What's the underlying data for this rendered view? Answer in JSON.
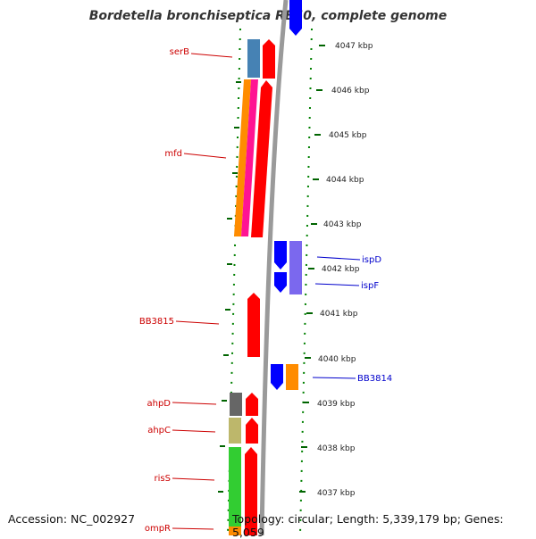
{
  "title": "Bordetella bronchiseptica RB50, complete genome",
  "footer": {
    "accession": "Accession: NC_002927",
    "topology": "Topology: circular; Length: 5,339,179 bp; Genes: 5,059"
  },
  "scale_labels": [
    "4047 kbp",
    "4046 kbp",
    "4045 kbp",
    "4044 kbp",
    "4043 kbp",
    "4042 kbp",
    "4041 kbp",
    "4040 kbp",
    "4039 kbp",
    "4038 kbp",
    "4037 kbp"
  ],
  "gene_labels": {
    "serB": "serB",
    "mfd": "mfd",
    "bb3815": "BB3815",
    "ahpD": "ahpD",
    "ahpC": "ahpC",
    "risS": "risS",
    "ompR": "ompR",
    "ispD": "ispD",
    "ispF": "ispF",
    "bb3814": "BB3814"
  },
  "colors": {
    "left_strand_label": "#cc0000",
    "right_strand_label": "#0000cc",
    "red_gene": "#ff0000",
    "blue_gene": "#0000ff",
    "steelblue_cog": "#4682b4",
    "orange_cog": "#ff8c00",
    "magenta_cog": "#ff1493",
    "lavender_cog": "#7b68ee",
    "gray_cog": "#666666",
    "khaki_cog": "#bdb76b",
    "green_cog": "#32cd32",
    "backbone": "#888888",
    "tick_green": "#006400"
  }
}
